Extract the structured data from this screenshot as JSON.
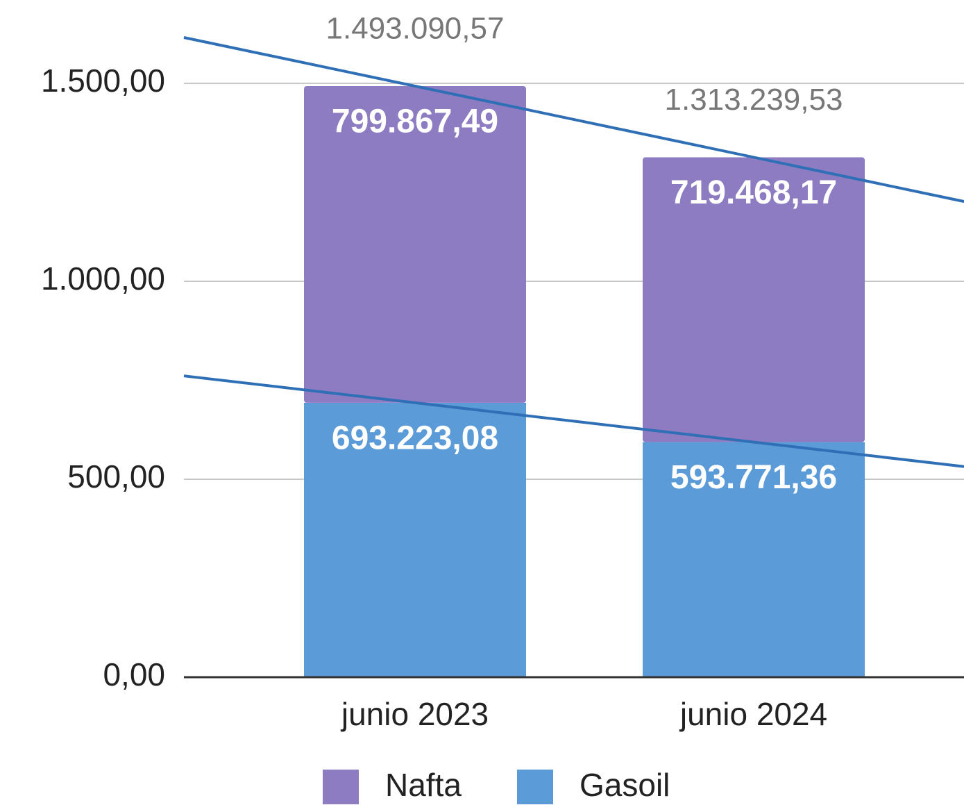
{
  "chart_data": {
    "type": "bar",
    "stacked": true,
    "categories": [
      "junio 2023",
      "junio 2024"
    ],
    "series": [
      {
        "name": "Gasoil",
        "color": "#5b9bd7",
        "values": [
          693.22308,
          593.77136
        ],
        "value_labels": [
          "693.223,08",
          "593.771,36"
        ]
      },
      {
        "name": "Nafta",
        "color": "#8e7cc3",
        "values": [
          799.86749,
          719.46817
        ],
        "value_labels": [
          "799.867,49",
          "719.468,17"
        ]
      }
    ],
    "totals": [
      1493.09057,
      1313.23953
    ],
    "total_labels": [
      "1.493.090,57",
      "1.313.239,53"
    ],
    "ylim": [
      0,
      1500
    ],
    "yticks": [
      {
        "value": 0,
        "label": "0,00"
      },
      {
        "value": 500,
        "label": "500,00"
      },
      {
        "value": 1000,
        "label": "1.000,00"
      },
      {
        "value": 1500,
        "label": "1.500,00"
      }
    ],
    "grid": true,
    "trendline": true,
    "trendline_color": "#2f6fb6",
    "legend": "bottom"
  }
}
